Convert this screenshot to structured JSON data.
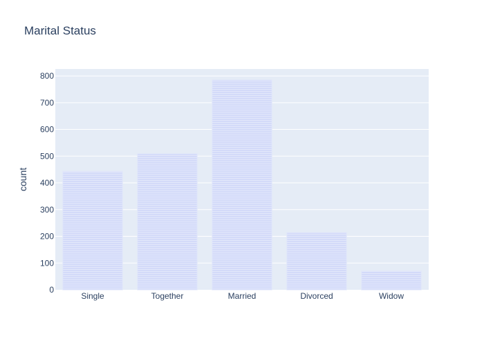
{
  "chart_data": {
    "type": "bar",
    "title": "Marital Status",
    "xlabel": "",
    "ylabel": "count",
    "categories": [
      "Single",
      "Together",
      "Married",
      "Divorced",
      "Widow"
    ],
    "values": [
      443,
      509,
      785,
      214,
      70
    ],
    "ylim": [
      0,
      826
    ],
    "yticks": [
      0,
      100,
      200,
      300,
      400,
      500,
      600,
      700,
      800
    ],
    "grid": true,
    "colors": {
      "plot_bg": "#E5ECF6",
      "bar_fill": "#D3DAF9",
      "bar_line": "#E1E6FA",
      "grid": "#FFFFFF",
      "text": "#2a3f5f"
    }
  }
}
